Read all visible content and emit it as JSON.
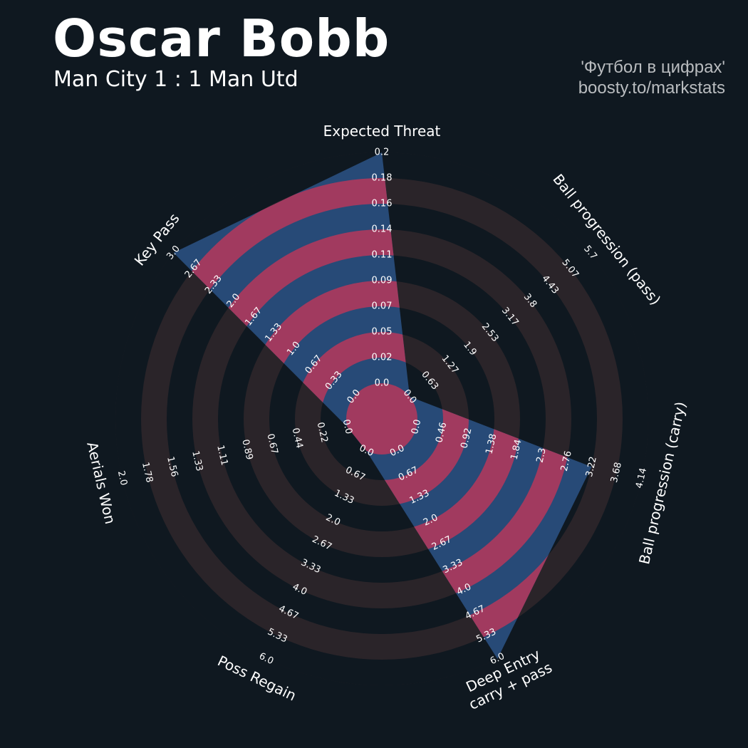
{
  "header": {
    "player_name": "Oscar Bobb",
    "match": "Man City 1 : 1 Man Utd",
    "credit_line1": "'Футбол в цифрах'",
    "credit_line2": "boosty.to/markstats"
  },
  "colors": {
    "background": "#0f1820",
    "ring_band": "#2a2429",
    "value_polygon": "#274a77",
    "highlight_band": "#a13a5f",
    "text": "#ffffff"
  },
  "chart_data": {
    "type": "radar",
    "title": "Oscar Bobb",
    "subtitle": "Man City 1 : 1 Man Utd",
    "params": [
      {
        "label": [
          "Expected Threat"
        ],
        "range": [
          0.0,
          0.2
        ],
        "value": 0.2,
        "ticks": [
          "0.0",
          "0.02",
          "0.05",
          "0.07",
          "0.09",
          "0.11",
          "0.14",
          "0.16",
          "0.18",
          "0.2"
        ]
      },
      {
        "label": [
          "Ball progression (pass)"
        ],
        "range": [
          0.0,
          5.7
        ],
        "value": 0.0,
        "ticks": [
          "0.0",
          "0.63",
          "1.27",
          "1.9",
          "2.53",
          "3.17",
          "3.8",
          "4.43",
          "5.07",
          "5.7"
        ]
      },
      {
        "label": [
          "Ball progression (carry)"
        ],
        "range": [
          0.0,
          4.14
        ],
        "value": 3.22,
        "ticks": [
          "0.0",
          "0.46",
          "0.92",
          "1.38",
          "1.84",
          "2.3",
          "2.76",
          "3.22",
          "3.68",
          "4.14"
        ]
      },
      {
        "label": [
          "Deep Entry",
          "carry + pass"
        ],
        "range": [
          0.0,
          6.0
        ],
        "value": 6.0,
        "ticks": [
          "0.0",
          "0.67",
          "1.33",
          "2.0",
          "2.67",
          "3.33",
          "4.0",
          "4.67",
          "5.33",
          "6.0"
        ]
      },
      {
        "label": [
          "Poss Regain"
        ],
        "range": [
          0.0,
          6.0
        ],
        "value": 0.0,
        "ticks": [
          "0.0",
          "0.67",
          "1.33",
          "2.0",
          "2.67",
          "3.33",
          "4.0",
          "4.67",
          "5.33",
          "6.0"
        ]
      },
      {
        "label": [
          "Aerials Won"
        ],
        "range": [
          0.0,
          2.0
        ],
        "value": 0.0,
        "ticks": [
          "0.0",
          "0.22",
          "0.44",
          "0.67",
          "0.89",
          "1.11",
          "1.33",
          "1.56",
          "1.78",
          "2.0"
        ]
      },
      {
        "label": [
          "Key Pass"
        ],
        "range": [
          0.0,
          3.0
        ],
        "value": 3.0,
        "ticks": [
          "0.0",
          "0.33",
          "0.67",
          "1.0",
          "1.33",
          "1.67",
          "2.0",
          "2.33",
          "2.67",
          "3.0"
        ]
      }
    ]
  }
}
